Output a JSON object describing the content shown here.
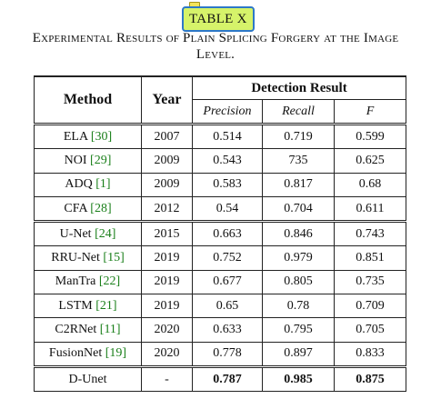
{
  "tag": "TABLE X",
  "caption": {
    "line1": "Experimental Results of Plain Splicing Forgery at the Image",
    "line2": "Level."
  },
  "header": {
    "method": "Method",
    "year": "Year",
    "detection": "Detection Result",
    "precision": "Precision",
    "recall": "Recall",
    "f": "F"
  },
  "groups": [
    [
      {
        "name": "ELA",
        "ref": "[30]",
        "year": "2007",
        "precision": "0.514",
        "recall": "0.719",
        "f": "0.599"
      },
      {
        "name": "NOI",
        "ref": "[29]",
        "year": "2009",
        "precision": "0.543",
        "recall": "735",
        "f": "0.625"
      },
      {
        "name": "ADQ",
        "ref": "[1]",
        "year": "2009",
        "precision": "0.583",
        "recall": "0.817",
        "f": "0.68"
      },
      {
        "name": "CFA",
        "ref": "[28]",
        "year": "2012",
        "precision": "0.54",
        "recall": "0.704",
        "f": "0.611"
      }
    ],
    [
      {
        "name": "U-Net",
        "ref": "[24]",
        "year": "2015",
        "precision": "0.663",
        "recall": "0.846",
        "f": "0.743"
      },
      {
        "name": "RRU-Net",
        "ref": "[15]",
        "year": "2019",
        "precision": "0.752",
        "recall": "0.979",
        "f": "0.851"
      },
      {
        "name": "ManTra",
        "ref": "[22]",
        "year": "2019",
        "precision": "0.677",
        "recall": "0.805",
        "f": "0.735"
      },
      {
        "name": "LSTM",
        "ref": "[21]",
        "year": "2019",
        "precision": "0.65",
        "recall": "0.78",
        "f": "0.709"
      },
      {
        "name": "C2RNet",
        "ref": "[11]",
        "year": "2020",
        "precision": "0.633",
        "recall": "0.795",
        "f": "0.705"
      },
      {
        "name": "FusionNet",
        "ref": "[19]",
        "year": "2020",
        "precision": "0.778",
        "recall": "0.897",
        "f": "0.833"
      }
    ],
    [
      {
        "name": "D-Unet",
        "ref": "",
        "year": "-",
        "precision": "0.787",
        "recall": "0.985",
        "f": "0.875",
        "bold": true
      }
    ]
  ]
}
